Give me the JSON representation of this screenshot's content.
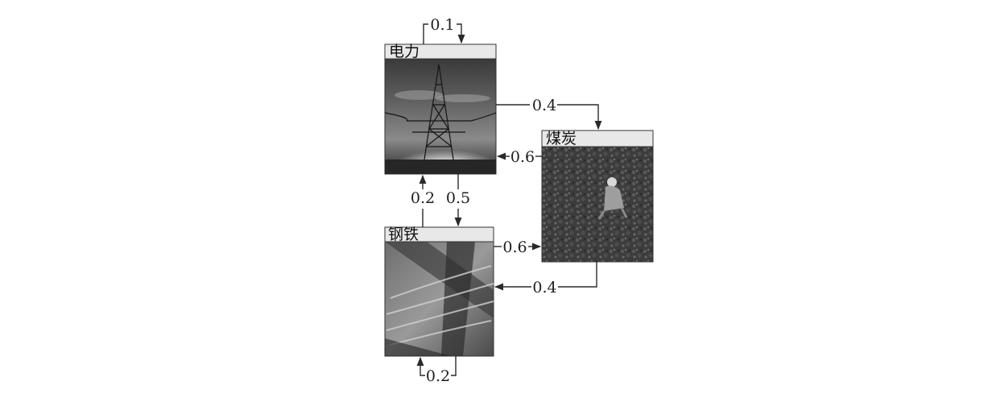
{
  "nodes": {
    "electricity": {
      "title": "电力"
    },
    "coal": {
      "title": "煤炭"
    },
    "steel": {
      "title": "钢铁"
    }
  },
  "edges": {
    "electricity_self": "0.1",
    "electricity_to_coal": "0.4",
    "coal_to_electricity": "0.6",
    "steel_to_electricity": "0.2",
    "electricity_to_steel": "0.5",
    "steel_to_coal": "0.6",
    "coal_to_steel": "0.4",
    "steel_self": "0.2"
  }
}
